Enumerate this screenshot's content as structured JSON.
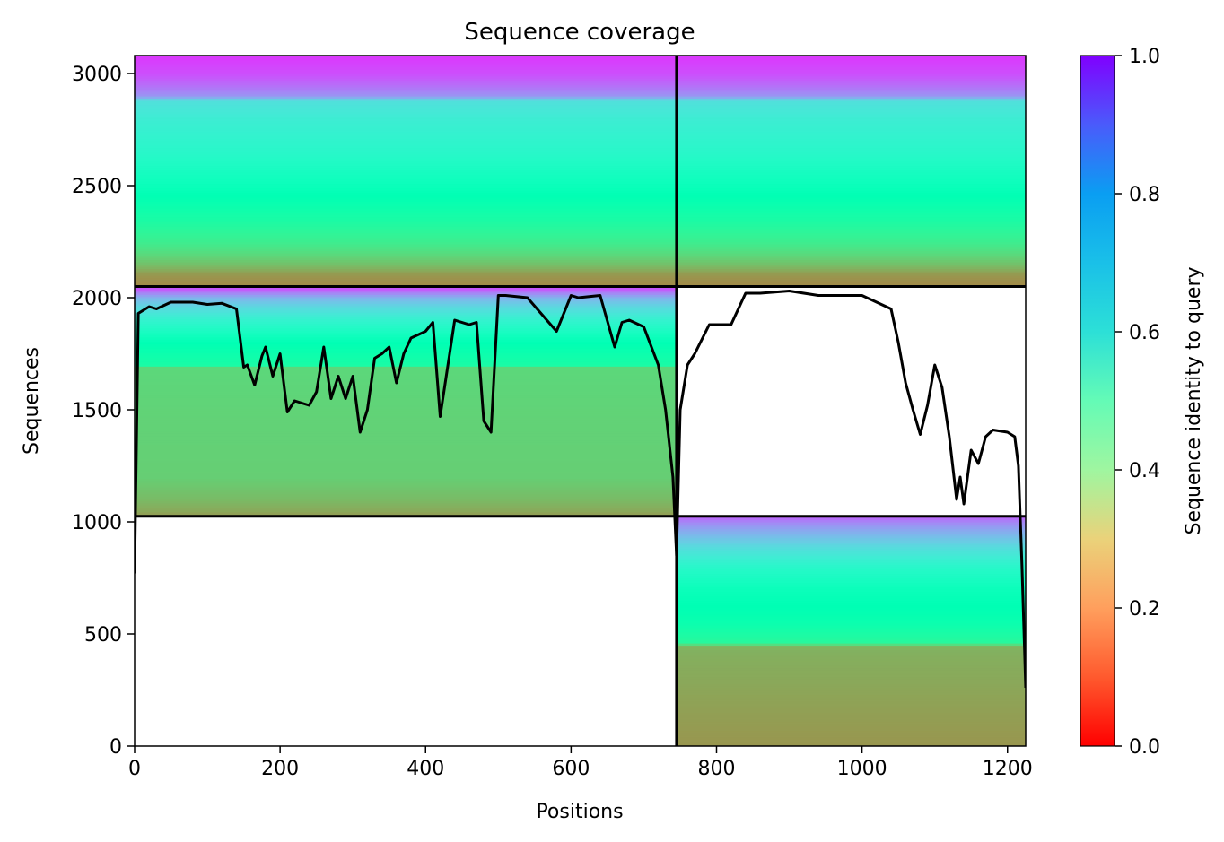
{
  "chart_data": {
    "type": "heatmap",
    "title": "Sequence coverage",
    "xlabel": "Positions",
    "ylabel": "Sequences",
    "colorbar_label": "Sequence identity to query",
    "colormap": "rainbow_r",
    "xlim": [
      0,
      1225
    ],
    "ylim": [
      0,
      3080
    ],
    "x_ticks": [
      0,
      200,
      400,
      600,
      800,
      1000,
      1200
    ],
    "y_ticks": [
      0,
      500,
      1000,
      1500,
      2000,
      2500,
      3000
    ],
    "colorbar_range": [
      0.0,
      1.0
    ],
    "colorbar_ticks": [
      0.0,
      0.2,
      0.4,
      0.6,
      0.8,
      1.0
    ],
    "colorbar_tick_labels": [
      "0.0",
      "0.2",
      "0.4",
      "0.6",
      "0.8",
      "1.0"
    ],
    "x_tick_labels": [
      "0",
      "200",
      "400",
      "600",
      "800",
      "1000",
      "1200"
    ],
    "y_tick_labels": [
      "0",
      "500",
      "1000",
      "1500",
      "2000",
      "2500",
      "3000"
    ],
    "chain_boundary_x": 745,
    "block_boundaries_y": [
      1025,
      2050
    ],
    "blocks": [
      {
        "name": "paired",
        "x_range": [
          0,
          1225
        ],
        "y_range": [
          2050,
          3080
        ],
        "identity_by_y": [
          [
            2050,
            0.18
          ],
          [
            2100,
            0.2
          ],
          [
            2150,
            0.27
          ],
          [
            2200,
            0.33
          ],
          [
            2250,
            0.38
          ],
          [
            2350,
            0.45
          ],
          [
            2500,
            0.52
          ],
          [
            2650,
            0.58
          ],
          [
            2800,
            0.62
          ],
          [
            2880,
            0.66
          ],
          [
            2900,
            0.8
          ],
          [
            2950,
            0.86
          ],
          [
            3000,
            0.9
          ],
          [
            3080,
            0.93
          ]
        ]
      },
      {
        "name": "chain-1-unpaired",
        "x_range": [
          0,
          745
        ],
        "y_range": [
          1025,
          2050
        ],
        "identity_by_y": [
          [
            1025,
            0.2
          ],
          [
            1050,
            0.23
          ],
          [
            1100,
            0.26
          ],
          [
            1200,
            0.3
          ],
          [
            1500,
            0.31
          ],
          [
            1690,
            0.32
          ],
          [
            1700,
            0.45
          ],
          [
            1800,
            0.5
          ],
          [
            1900,
            0.6
          ],
          [
            1960,
            0.68
          ],
          [
            2000,
            0.75
          ],
          [
            2030,
            0.85
          ],
          [
            2050,
            0.92
          ]
        ]
      },
      {
        "name": "chain-2-unpaired",
        "x_range": [
          745,
          1225
        ],
        "y_range": [
          0,
          1025
        ],
        "identity_by_y": [
          [
            0,
            0.2
          ],
          [
            200,
            0.22
          ],
          [
            400,
            0.24
          ],
          [
            450,
            0.25
          ],
          [
            460,
            0.42
          ],
          [
            550,
            0.48
          ],
          [
            700,
            0.52
          ],
          [
            800,
            0.58
          ],
          [
            880,
            0.66
          ],
          [
            950,
            0.75
          ],
          [
            1000,
            0.82
          ],
          [
            1025,
            0.88
          ]
        ]
      }
    ],
    "coverage_line": {
      "x": [
        0,
        5,
        10,
        20,
        30,
        50,
        80,
        100,
        120,
        140,
        150,
        155,
        165,
        175,
        180,
        190,
        200,
        210,
        220,
        240,
        250,
        260,
        270,
        280,
        290,
        300,
        310,
        320,
        330,
        340,
        350,
        360,
        370,
        380,
        400,
        410,
        420,
        440,
        460,
        470,
        480,
        490,
        500,
        510,
        540,
        580,
        600,
        610,
        640,
        660,
        670,
        680,
        700,
        720,
        730,
        740,
        745,
        750,
        760,
        770,
        790,
        800,
        820,
        840,
        860,
        900,
        940,
        1000,
        1040,
        1050,
        1060,
        1070,
        1080,
        1090,
        1100,
        1110,
        1120,
        1130,
        1135,
        1140,
        1150,
        1160,
        1170,
        1180,
        1200,
        1210,
        1215,
        1220,
        1225
      ],
      "y": [
        770,
        1930,
        1940,
        1960,
        1950,
        1980,
        1980,
        1970,
        1975,
        1950,
        1690,
        1700,
        1610,
        1740,
        1780,
        1650,
        1750,
        1490,
        1540,
        1520,
        1580,
        1780,
        1550,
        1650,
        1550,
        1650,
        1400,
        1500,
        1730,
        1750,
        1780,
        1620,
        1750,
        1820,
        1850,
        1890,
        1470,
        1900,
        1880,
        1890,
        1450,
        1400,
        2010,
        2010,
        2000,
        1850,
        2010,
        2000,
        2010,
        1780,
        1890,
        1900,
        1870,
        1700,
        1500,
        1200,
        850,
        1500,
        1700,
        1750,
        1880,
        1880,
        1880,
        2020,
        2020,
        2030,
        2010,
        2010,
        1950,
        1800,
        1620,
        1500,
        1390,
        1520,
        1700,
        1600,
        1380,
        1100,
        1200,
        1080,
        1320,
        1260,
        1380,
        1410,
        1400,
        1380,
        1250,
        800,
        260
      ]
    }
  }
}
